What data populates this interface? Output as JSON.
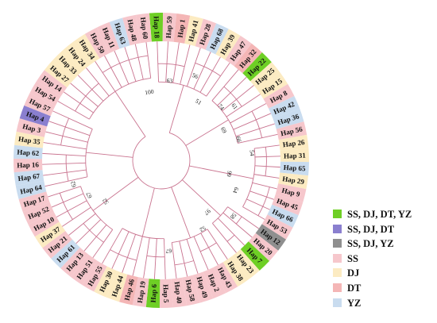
{
  "legend": {
    "items": [
      {
        "key": "SS_DJ_DT_YZ",
        "label": "SS,  DJ, DT, YZ",
        "color": "#6ecf25"
      },
      {
        "key": "SS_DJ_DT",
        "label": "SS,  DJ, DT",
        "color": "#8a7fcf"
      },
      {
        "key": "SS_DJ_YZ",
        "label": "SS,  DJ, YZ",
        "color": "#8f8f8f"
      },
      {
        "key": "SS",
        "label": "SS",
        "color": "#f6c7cc"
      },
      {
        "key": "DJ",
        "label": "DJ",
        "color": "#fcebc2"
      },
      {
        "key": "DT",
        "label": "DT",
        "color": "#f4b6b6"
      },
      {
        "key": "YZ",
        "label": "YZ",
        "color": "#c9dcef"
      }
    ]
  },
  "colors": {
    "branch": "#c9738f",
    "label_text": "#111111",
    "support_text": "#222222"
  },
  "tree": {
    "leaves": [
      {
        "label": "Hap 18",
        "group": "SS_DJ_DT_YZ"
      },
      {
        "label": "Hap 59",
        "group": "SS"
      },
      {
        "label": "Hap 1",
        "group": "DT"
      },
      {
        "label": "Hap 41",
        "group": "DJ"
      },
      {
        "label": "Hap 28",
        "group": "SS"
      },
      {
        "label": "Hap 68",
        "group": "YZ"
      },
      {
        "label": "Hap 39",
        "group": "DJ"
      },
      {
        "label": "Hap 47",
        "group": "SS"
      },
      {
        "label": "Hap 32",
        "group": "DT"
      },
      {
        "label": "Hap 22",
        "group": "SS_DJ_DT_YZ"
      },
      {
        "label": "Hap 25",
        "group": "DJ"
      },
      {
        "label": "Hap 15",
        "group": "DJ"
      },
      {
        "label": "Hap 8",
        "group": "SS"
      },
      {
        "label": "Hap 42",
        "group": "YZ"
      },
      {
        "label": "Hap 36",
        "group": "YZ"
      },
      {
        "label": "Hap 56",
        "group": "SS"
      },
      {
        "label": "Hap 26",
        "group": "DJ"
      },
      {
        "label": "Hap 31",
        "group": "DJ"
      },
      {
        "label": "Hap 65",
        "group": "YZ"
      },
      {
        "label": "Hap 29",
        "group": "DJ"
      },
      {
        "label": "Hap 9",
        "group": "SS"
      },
      {
        "label": "Hap 45",
        "group": "SS"
      },
      {
        "label": "Hap 66",
        "group": "YZ"
      },
      {
        "label": "Hap 53",
        "group": "SS"
      },
      {
        "label": "Hap 12",
        "group": "SS_DJ_YZ"
      },
      {
        "label": "Hap 20",
        "group": "SS"
      },
      {
        "label": "Hap 7",
        "group": "SS_DJ_DT_YZ"
      },
      {
        "label": "Hap 23",
        "group": "DJ"
      },
      {
        "label": "Hap 38",
        "group": "DJ"
      },
      {
        "label": "Hap 43",
        "group": "SS"
      },
      {
        "label": "Hap 2",
        "group": "SS"
      },
      {
        "label": "Hap 49",
        "group": "SS"
      },
      {
        "label": "Hap 58",
        "group": "SS"
      },
      {
        "label": "Hap 40",
        "group": "SS"
      },
      {
        "label": "Hap 5",
        "group": "SS"
      },
      {
        "label": "Hap 6",
        "group": "SS_DJ_DT_YZ"
      },
      {
        "label": "Hap 19",
        "group": "SS"
      },
      {
        "label": "Hap 46",
        "group": "DT"
      },
      {
        "label": "Hap 44",
        "group": "DJ"
      },
      {
        "label": "Hap 30",
        "group": "DJ"
      },
      {
        "label": "Hap 55",
        "group": "SS"
      },
      {
        "label": "Hap 51",
        "group": "SS"
      },
      {
        "label": "Hap 13",
        "group": "SS"
      },
      {
        "label": "Hap 61",
        "group": "YZ"
      },
      {
        "label": "Hap 21",
        "group": "SS"
      },
      {
        "label": "Hap 37",
        "group": "DJ"
      },
      {
        "label": "Hap 10",
        "group": "SS"
      },
      {
        "label": "Hap 52",
        "group": "SS"
      },
      {
        "label": "Hap 17",
        "group": "SS"
      },
      {
        "label": "Hap 64",
        "group": "YZ"
      },
      {
        "label": "Hap 67",
        "group": "YZ"
      },
      {
        "label": "Hap 16",
        "group": "SS"
      },
      {
        "label": "Hap 62",
        "group": "YZ"
      },
      {
        "label": "Hap 35",
        "group": "DJ"
      },
      {
        "label": "Hap 3",
        "group": "SS"
      },
      {
        "label": "Hap 4",
        "group": "SS_DJ_DT"
      },
      {
        "label": "Hap 57",
        "group": "SS"
      },
      {
        "label": "Hap 54",
        "group": "SS"
      },
      {
        "label": "Hap 14",
        "group": "SS"
      },
      {
        "label": "Hap 27",
        "group": "DJ"
      },
      {
        "label": "Hap 33",
        "group": "DJ"
      },
      {
        "label": "Hap 24",
        "group": "DJ"
      },
      {
        "label": "Hap 34",
        "group": "DJ"
      },
      {
        "label": "Hap 50",
        "group": "SS"
      },
      {
        "label": "Hap 11",
        "group": "SS"
      },
      {
        "label": "Hap 63",
        "group": "YZ"
      },
      {
        "label": "Hap 48",
        "group": "SS"
      },
      {
        "label": "Hap 60",
        "group": "SS"
      }
    ],
    "clades": [
      {
        "leaves": [
          0,
          7
        ],
        "depth": 0.55
      },
      {
        "leaves": [
          8,
          15
        ],
        "depth": 0.55
      },
      {
        "leaves": [
          16,
          23
        ],
        "depth": 0.72
      },
      {
        "leaves": [
          24,
          27
        ],
        "depth": 0.58
      },
      {
        "leaves": [
          28,
          33
        ],
        "depth": 0.6
      },
      {
        "leaves": [
          34,
          40
        ],
        "depth": 0.55
      },
      {
        "leaves": [
          41,
          48
        ],
        "depth": 0.62
      },
      {
        "leaves": [
          49,
          56
        ],
        "depth": 0.52
      },
      {
        "leaves": [
          57,
          67
        ],
        "depth": 0.6
      }
    ],
    "support_values": [
      {
        "text": "100",
        "near_leaf": 66
      },
      {
        "text": "63",
        "near_leaf": 1
      },
      {
        "text": "56",
        "near_leaf": 4
      },
      {
        "text": "51",
        "near_leaf": 6
      },
      {
        "text": "74",
        "near_leaf": 9
      },
      {
        "text": "61",
        "near_leaf": 10
      },
      {
        "text": "69",
        "near_leaf": 12
      },
      {
        "text": "66",
        "near_leaf": 14
      },
      {
        "text": "54",
        "near_leaf": 16
      },
      {
        "text": "99",
        "near_leaf": 19
      },
      {
        "text": "64",
        "near_leaf": 21
      },
      {
        "text": "58",
        "near_leaf": 24
      },
      {
        "text": "97",
        "near_leaf": 26
      },
      {
        "text": "52",
        "near_leaf": 28
      },
      {
        "text": "67",
        "near_leaf": 33
      },
      {
        "text": "52",
        "near_leaf": 44
      },
      {
        "text": "67",
        "near_leaf": 46
      },
      {
        "text": "62",
        "near_leaf": 48
      }
    ]
  }
}
